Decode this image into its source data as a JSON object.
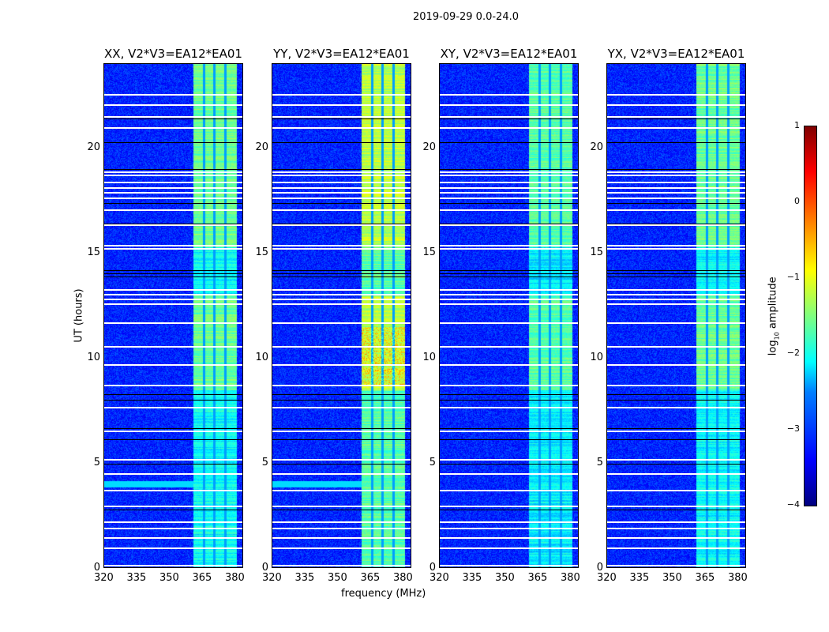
{
  "chart_data": {
    "type": "heatmap",
    "title": "2019-09-29 0.0-24.0",
    "xlabel": "frequency (MHz)",
    "ylabel": "UT (hours)",
    "xlim": [
      320,
      384
    ],
    "ylim": [
      0,
      24
    ],
    "xticks": [
      320,
      335,
      350,
      365,
      380
    ],
    "yticks": [
      0,
      5,
      10,
      15,
      20
    ],
    "panels": [
      {
        "title": "XX, V2*V3=EA12*EA01",
        "band_level": -1.6,
        "background_level": -3.2
      },
      {
        "title": "YY, V2*V3=EA12*EA01",
        "band_level": -1.2,
        "background_level": -3.2
      },
      {
        "title": "XY, V2*V3=EA12*EA01",
        "band_level": -1.7,
        "background_level": -3.2
      },
      {
        "title": "YX, V2*V3=EA12*EA01",
        "band_level": -1.6,
        "background_level": -3.2
      }
    ],
    "signal_band_mhz": [
      360.7,
      380.4
    ],
    "subband_gaps_mhz": [
      365.5,
      370.2,
      375.3
    ],
    "flagged_hours": [
      22.55,
      22.03,
      21.5,
      20.94,
      18.84,
      18.69,
      18.35,
      18.12,
      17.86,
      17.6,
      17.04,
      16.32,
      15.35,
      15.2,
      13.25,
      13.02,
      12.8,
      12.57,
      11.67,
      10.54,
      9.68,
      8.71,
      7.65,
      6.53,
      5.2,
      4.5,
      3.71,
      2.96,
      2.21,
      1.91,
      1.46,
      0.98,
      0.15
    ],
    "dark_line_hours": [
      21.4,
      20.3,
      19.0,
      17.4,
      16.4,
      14.2,
      14.05,
      13.9,
      8.3,
      8.05,
      6.7,
      6.15,
      5.0,
      2.8
    ],
    "colorbar": {
      "label": "log10 amplitude",
      "label_main": "log",
      "label_sub": "10",
      "label_rest": " amplitude",
      "range": [
        -4,
        1
      ],
      "ticks": [
        "1",
        "0",
        "−1",
        "−2",
        "−3",
        "−4"
      ],
      "colormap": "jet"
    }
  }
}
